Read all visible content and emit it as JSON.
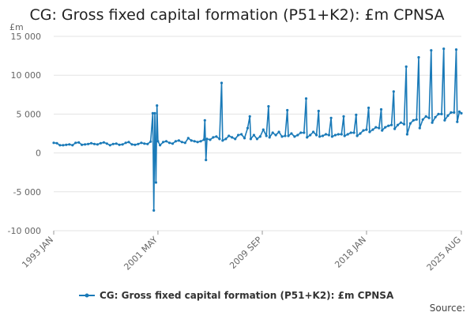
{
  "chart_data": {
    "type": "line",
    "title": "CG: Gross fixed capital formation (P51+K2): £m CPNSA",
    "y_unit": "£m",
    "xlabel": "",
    "ylabel": "",
    "x_range": [
      "1993 JAN",
      "2025 AUG"
    ],
    "ylim": [
      -10000,
      15000
    ],
    "y_ticks": [
      -10000,
      -5000,
      0,
      5000,
      10000,
      15000
    ],
    "y_tick_labels": [
      "-10 000",
      "-5 000",
      "0",
      "5 000",
      "10 000",
      "15 000"
    ],
    "x_ticks": [
      {
        "label": "1993 JAN",
        "value": 1993.0
      },
      {
        "label": "2001 MAY",
        "value": 2001.33
      },
      {
        "label": "2009 SEP",
        "value": 2009.67
      },
      {
        "label": "2018 JAN",
        "value": 2018.0
      },
      {
        "label": "2025 AUG",
        "value": 2025.58
      }
    ],
    "grid": "horizontal",
    "legend_position": "bottom",
    "series": [
      {
        "name": "CG: Gross fixed capital formation (P51+K2): £m CPNSA",
        "color": "#1a7ab8",
        "points": [
          [
            1993.0,
            1300
          ],
          [
            1993.25,
            1250
          ],
          [
            1993.5,
            1000
          ],
          [
            1993.75,
            1000
          ],
          [
            1994.0,
            1050
          ],
          [
            1994.25,
            1100
          ],
          [
            1994.5,
            1000
          ],
          [
            1994.75,
            1300
          ],
          [
            1995.0,
            1350
          ],
          [
            1995.25,
            1050
          ],
          [
            1995.5,
            1100
          ],
          [
            1995.75,
            1150
          ],
          [
            1996.0,
            1250
          ],
          [
            1996.25,
            1150
          ],
          [
            1996.5,
            1100
          ],
          [
            1996.75,
            1250
          ],
          [
            1997.0,
            1350
          ],
          [
            1997.25,
            1200
          ],
          [
            1997.5,
            1000
          ],
          [
            1997.75,
            1150
          ],
          [
            1998.0,
            1200
          ],
          [
            1998.25,
            1050
          ],
          [
            1998.5,
            1100
          ],
          [
            1998.75,
            1300
          ],
          [
            1999.0,
            1400
          ],
          [
            1999.25,
            1100
          ],
          [
            1999.5,
            1050
          ],
          [
            1999.75,
            1150
          ],
          [
            2000.0,
            1300
          ],
          [
            2000.25,
            1200
          ],
          [
            2000.5,
            1150
          ],
          [
            2000.75,
            1450
          ],
          [
            2000.92,
            5100
          ],
          [
            2001.0,
            -7400
          ],
          [
            2001.08,
            5100
          ],
          [
            2001.17,
            -3800
          ],
          [
            2001.25,
            6100
          ],
          [
            2001.33,
            1500
          ],
          [
            2001.5,
            1000
          ],
          [
            2001.75,
            1400
          ],
          [
            2002.0,
            1500
          ],
          [
            2002.25,
            1300
          ],
          [
            2002.5,
            1200
          ],
          [
            2002.75,
            1500
          ],
          [
            2003.0,
            1600
          ],
          [
            2003.25,
            1400
          ],
          [
            2003.5,
            1300
          ],
          [
            2003.75,
            1900
          ],
          [
            2004.0,
            1600
          ],
          [
            2004.25,
            1500
          ],
          [
            2004.5,
            1400
          ],
          [
            2004.75,
            1500
          ],
          [
            2005.0,
            1700
          ],
          [
            2005.08,
            4200
          ],
          [
            2005.17,
            -900
          ],
          [
            2005.25,
            1800
          ],
          [
            2005.5,
            1700
          ],
          [
            2005.75,
            2000
          ],
          [
            2006.0,
            2100
          ],
          [
            2006.25,
            1800
          ],
          [
            2006.42,
            9000
          ],
          [
            2006.5,
            1600
          ],
          [
            2006.75,
            1800
          ],
          [
            2007.0,
            2200
          ],
          [
            2007.25,
            2000
          ],
          [
            2007.5,
            1800
          ],
          [
            2007.75,
            2300
          ],
          [
            2008.0,
            2400
          ],
          [
            2008.25,
            1900
          ],
          [
            2008.5,
            3200
          ],
          [
            2008.67,
            4700
          ],
          [
            2008.75,
            1800
          ],
          [
            2009.0,
            2300
          ],
          [
            2009.25,
            1800
          ],
          [
            2009.5,
            2100
          ],
          [
            2009.75,
            3000
          ],
          [
            2010.0,
            2200
          ],
          [
            2010.17,
            6000
          ],
          [
            2010.25,
            2000
          ],
          [
            2010.5,
            2600
          ],
          [
            2010.75,
            2300
          ],
          [
            2011.0,
            2700
          ],
          [
            2011.25,
            2100
          ],
          [
            2011.5,
            2200
          ],
          [
            2011.67,
            5500
          ],
          [
            2011.75,
            2200
          ],
          [
            2012.0,
            2500
          ],
          [
            2012.25,
            2100
          ],
          [
            2012.5,
            2300
          ],
          [
            2012.75,
            2600
          ],
          [
            2013.0,
            2600
          ],
          [
            2013.17,
            7000
          ],
          [
            2013.25,
            2000
          ],
          [
            2013.5,
            2300
          ],
          [
            2013.75,
            2700
          ],
          [
            2014.0,
            2300
          ],
          [
            2014.17,
            5400
          ],
          [
            2014.25,
            2100
          ],
          [
            2014.5,
            2200
          ],
          [
            2014.75,
            2400
          ],
          [
            2015.0,
            2300
          ],
          [
            2015.17,
            4500
          ],
          [
            2015.25,
            2100
          ],
          [
            2015.5,
            2300
          ],
          [
            2015.75,
            2400
          ],
          [
            2016.0,
            2400
          ],
          [
            2016.17,
            4700
          ],
          [
            2016.25,
            2200
          ],
          [
            2016.5,
            2400
          ],
          [
            2016.75,
            2600
          ],
          [
            2017.0,
            2600
          ],
          [
            2017.17,
            4900
          ],
          [
            2017.25,
            2200
          ],
          [
            2017.5,
            2500
          ],
          [
            2017.75,
            2900
          ],
          [
            2018.0,
            3000
          ],
          [
            2018.17,
            5800
          ],
          [
            2018.25,
            2700
          ],
          [
            2018.5,
            3000
          ],
          [
            2018.75,
            3300
          ],
          [
            2019.0,
            3200
          ],
          [
            2019.17,
            5600
          ],
          [
            2019.25,
            2900
          ],
          [
            2019.5,
            3300
          ],
          [
            2019.75,
            3500
          ],
          [
            2020.0,
            3600
          ],
          [
            2020.17,
            7900
          ],
          [
            2020.25,
            3100
          ],
          [
            2020.5,
            3600
          ],
          [
            2020.75,
            3900
          ],
          [
            2021.0,
            3700
          ],
          [
            2021.17,
            11100
          ],
          [
            2021.25,
            2400
          ],
          [
            2021.5,
            3800
          ],
          [
            2021.75,
            4200
          ],
          [
            2022.0,
            4300
          ],
          [
            2022.17,
            12300
          ],
          [
            2022.25,
            3200
          ],
          [
            2022.5,
            4300
          ],
          [
            2022.75,
            4700
          ],
          [
            2023.0,
            4500
          ],
          [
            2023.17,
            13200
          ],
          [
            2023.25,
            3900
          ],
          [
            2023.5,
            4600
          ],
          [
            2023.75,
            5000
          ],
          [
            2024.0,
            5000
          ],
          [
            2024.17,
            13400
          ],
          [
            2024.25,
            4200
          ],
          [
            2024.5,
            4800
          ],
          [
            2024.75,
            5200
          ],
          [
            2025.0,
            5200
          ],
          [
            2025.17,
            13300
          ],
          [
            2025.25,
            4000
          ],
          [
            2025.42,
            5300
          ],
          [
            2025.58,
            5100
          ]
        ]
      }
    ]
  },
  "source_label": "Source:"
}
